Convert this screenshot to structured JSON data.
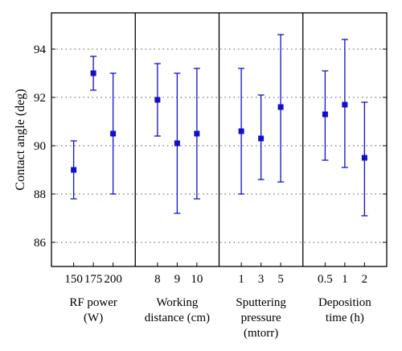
{
  "chart_data": {
    "type": "scatter",
    "style": "point-with-error-bars",
    "ylabel": "Contact angle (deg)",
    "ylim": [
      85,
      95.5
    ],
    "yticks": [
      86,
      88,
      90,
      92,
      94
    ],
    "grid": "horizontal-dotted",
    "marker_color": "#1010c8",
    "panels": [
      {
        "label_lines": [
          "RF power",
          "(W)"
        ],
        "categories": [
          "150",
          "175",
          "200"
        ],
        "values": [
          89.0,
          93.0,
          90.5
        ],
        "lower": [
          87.8,
          92.3,
          88.0
        ],
        "upper": [
          90.2,
          93.7,
          93.0
        ]
      },
      {
        "label_lines": [
          "Working",
          "distance (cm)"
        ],
        "categories": [
          "8",
          "9",
          "10"
        ],
        "values": [
          91.9,
          90.1,
          90.5
        ],
        "lower": [
          90.4,
          87.2,
          87.8
        ],
        "upper": [
          93.4,
          93.0,
          93.2
        ]
      },
      {
        "label_lines": [
          "Sputtering",
          "pressure",
          "(mtorr)"
        ],
        "categories": [
          "1",
          "3",
          "5"
        ],
        "values": [
          90.6,
          90.3,
          91.6
        ],
        "lower": [
          88.0,
          88.6,
          88.5
        ],
        "upper": [
          93.2,
          92.1,
          94.6
        ]
      },
      {
        "label_lines": [
          "Deposition",
          "time (h)"
        ],
        "categories": [
          "0.5",
          "1",
          "2"
        ],
        "values": [
          91.3,
          91.7,
          89.5
        ],
        "lower": [
          89.4,
          89.1,
          87.1
        ],
        "upper": [
          93.1,
          94.4,
          91.8
        ]
      }
    ]
  }
}
